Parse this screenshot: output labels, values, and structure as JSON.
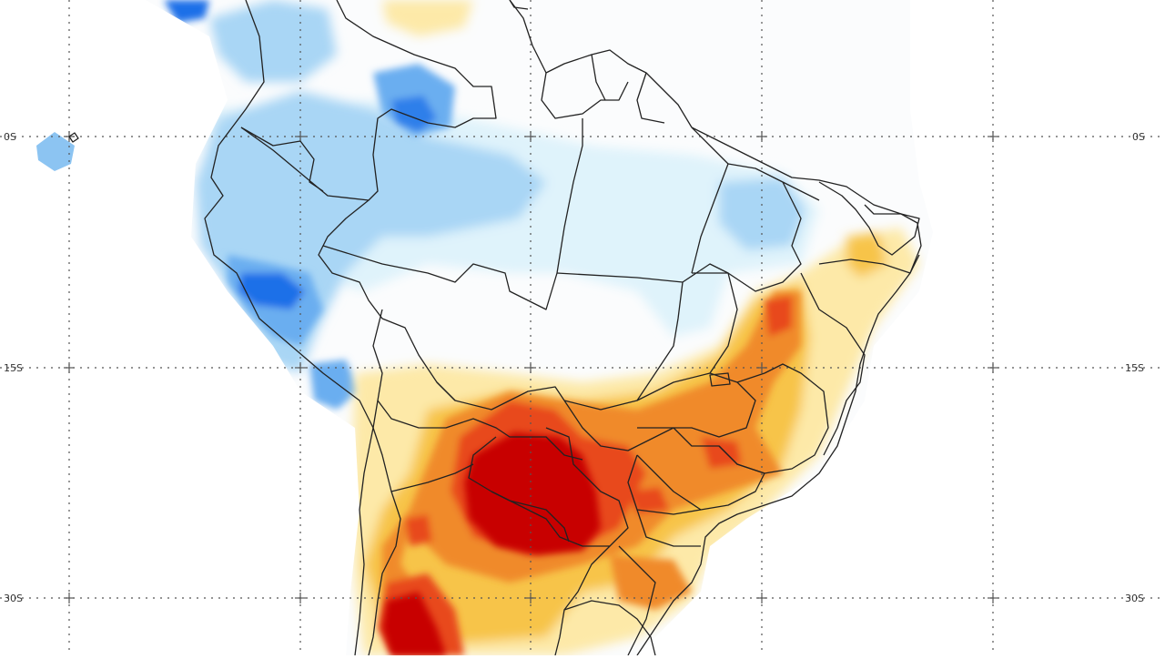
{
  "map": {
    "lat_labels_left": [
      "0S",
      "15S",
      "30S"
    ],
    "lat_labels_right": [
      "0S",
      "15S",
      "30S"
    ],
    "grid": "dotted",
    "palette": {
      "strong_negative": "#1f6fe8",
      "moderate_negative": "#6aaef0",
      "weak_negative": "#a9d6f5",
      "very_weak_negative": "#dff3fb",
      "weak_positive": "#fde9a8",
      "moderate_positive": "#f7c44a",
      "orange": "#f08a2c",
      "strong_positive": "#e8481c",
      "very_strong_positive": "#c80000",
      "border_color": "#222222",
      "grid_color": "#555555"
    }
  }
}
